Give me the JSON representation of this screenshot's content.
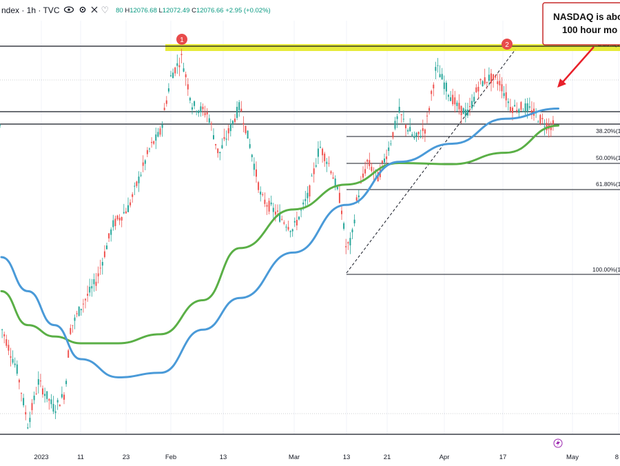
{
  "header": {
    "symbol": "ndex · 1h · TVC",
    "ohlc": {
      "o_value": "80",
      "h_label": "H",
      "h_value": "12076.68",
      "l_label": "L",
      "l_value": "12072.49",
      "c_label": "C",
      "c_value": "12076.66",
      "change": "+2.95 (+0.02%)"
    }
  },
  "callout": {
    "line1": "NASDAQ is abo",
    "line2": "100 hour mo"
  },
  "markers": [
    {
      "label": "1"
    },
    {
      "label": "2"
    }
  ],
  "x_axis": {
    "ticks": [
      "2023",
      "11",
      "23",
      "Feb",
      "13",
      "Mar",
      "13",
      "21",
      "Apr",
      "17",
      "May",
      "8"
    ]
  },
  "fib_levels": [
    {
      "label": "0.00%(1"
    },
    {
      "label": "38.20%(1"
    },
    {
      "label": "50.00%(1"
    },
    {
      "label": "61.80%(1"
    },
    {
      "label": "100.00%(1"
    }
  ],
  "colors": {
    "ma_100": "#4a9ad8",
    "ma_200": "#5aaf46",
    "highlight": "#e6ea3a",
    "callout": "#e8202a",
    "up": "#26a69a",
    "down": "#ef5350"
  },
  "chart_data": {
    "type": "line",
    "title": "",
    "timeframe": "1h",
    "series": [
      {
        "name": "",
        "color": "#4a9ad8",
        "x": [
          0,
          5,
          10,
          15,
          22,
          30,
          38,
          45,
          55,
          65,
          75,
          85,
          95,
          105
        ],
        "y": [
          11300,
          11150,
          11000,
          10850,
          10770,
          10790,
          10980,
          11120,
          11320,
          11530,
          11720,
          11800,
          11910,
          11955
        ]
      },
      {
        "name": "",
        "color": "#5aaf46",
        "x": [
          0,
          5,
          10,
          15,
          22,
          30,
          38,
          45,
          55,
          65,
          75,
          85,
          95,
          105
        ],
        "y": [
          11150,
          11000,
          10950,
          10920,
          10920,
          10960,
          11110,
          11340,
          11510,
          11620,
          11715,
          11710,
          11760,
          11880
        ]
      }
    ],
    "xlabel": "",
    "ylabel": ""
  }
}
